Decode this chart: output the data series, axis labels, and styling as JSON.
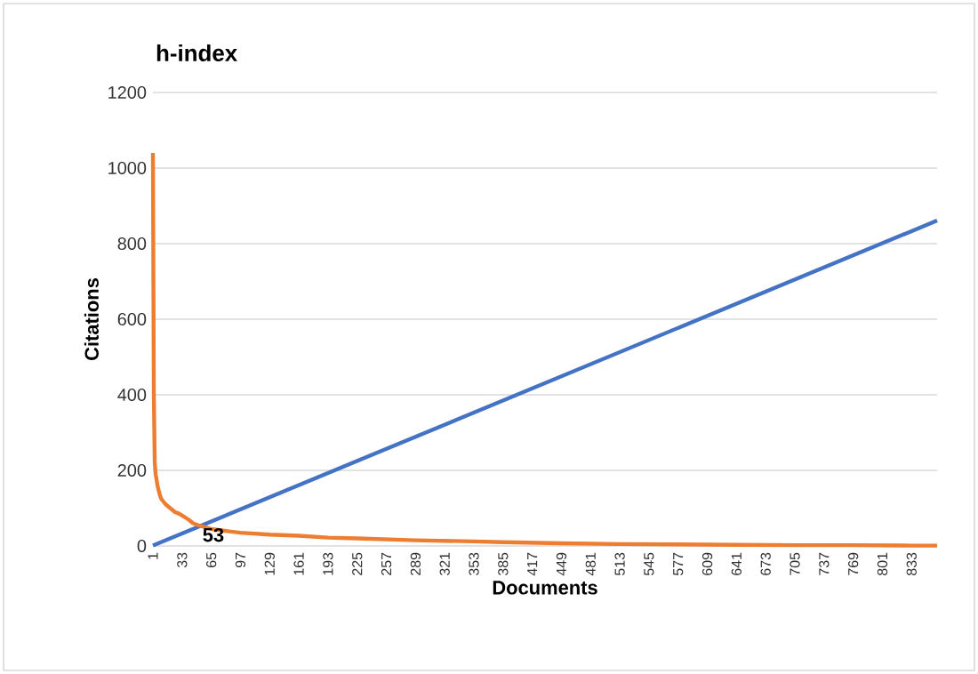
{
  "chart_data": {
    "type": "line",
    "title": "h-index",
    "xlabel": "Documents",
    "ylabel": "Citations",
    "series": [
      {
        "color": "#4472c4",
        "x": [
          1,
          861
        ],
        "values": [
          1,
          861
        ]
      },
      {
        "color": "#ed7d31",
        "x": [
          1,
          2,
          3,
          4,
          6,
          8,
          10,
          15,
          20,
          25,
          30,
          40,
          45,
          53,
          65,
          80,
          97,
          129,
          161,
          193,
          225,
          289,
          353,
          385,
          449,
          513,
          577,
          641,
          705,
          769,
          833,
          861
        ],
        "values": [
          1040,
          400,
          220,
          190,
          160,
          140,
          125,
          110,
          100,
          90,
          85,
          70,
          60,
          53,
          45,
          40,
          35,
          30,
          27,
          22,
          20,
          15,
          12,
          10,
          7,
          5,
          4,
          3,
          2,
          2,
          1,
          1
        ]
      }
    ],
    "xlim": [
      1,
      861
    ],
    "xticks": [
      1,
      33,
      65,
      97,
      129,
      161,
      193,
      225,
      257,
      289,
      321,
      353,
      385,
      417,
      449,
      481,
      513,
      545,
      577,
      609,
      641,
      673,
      705,
      737,
      769,
      801,
      833
    ],
    "ylim": [
      0,
      1200
    ],
    "yticks": [
      0,
      200,
      400,
      600,
      800,
      1000,
      1200
    ],
    "grid": "y",
    "marker": "none",
    "line_style": "solid",
    "annotations": [
      {
        "text": "53",
        "x": 53,
        "y": 53
      }
    ]
  }
}
